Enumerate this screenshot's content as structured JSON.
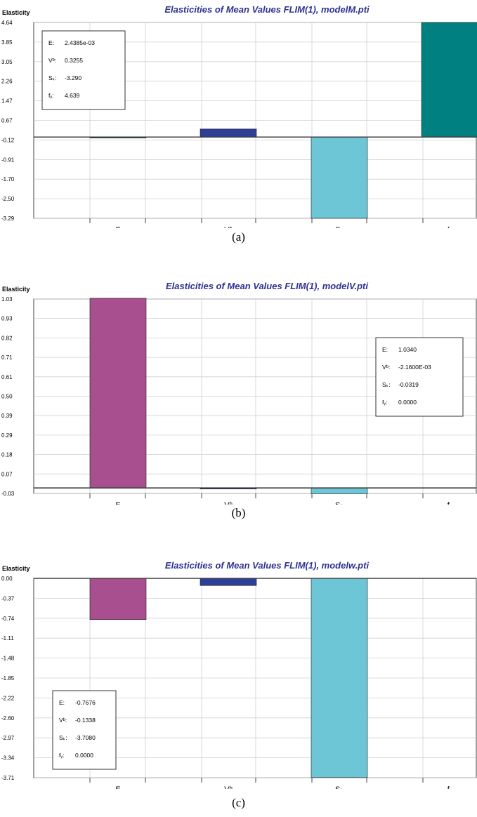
{
  "chart_data": [
    {
      "type": "bar",
      "title": "Elasticities of Mean Values FLIM(1), modelM.pti",
      "ylabel": "Elasticity",
      "categories": [
        "E",
        "Vᵇ",
        "Sₖ",
        "fᵧ"
      ],
      "values": [
        0.0024385,
        0.3255,
        -3.29,
        4.639
      ],
      "ylim": [
        -3.29,
        4.64
      ],
      "yticks": [
        "4.64",
        "3.85",
        "3.05",
        "2.26",
        "1.47",
        "0.67",
        "-0.12",
        "-0.91",
        "-1.70",
        "-2.50",
        "-3.29"
      ],
      "legend": [
        {
          "label": "E:",
          "value": "2.4385e-03"
        },
        {
          "label": "Vᵇ:",
          "value": "0.3255"
        },
        {
          "label": "Sₖ:",
          "value": "-3.290"
        },
        {
          "label": "fᵧ:",
          "value": "4.639"
        }
      ],
      "legend_position": "top-left",
      "caption": "(a)"
    },
    {
      "type": "bar",
      "title": "Elasticities of Mean Values FLIM(1), modelV.pti",
      "ylabel": "Elasticity",
      "categories": [
        "E",
        "Vᵇ",
        "Sₖ",
        "fᵧ"
      ],
      "values": [
        1.034,
        -0.00216,
        -0.0319,
        0.0
      ],
      "ylim": [
        -0.03,
        1.03
      ],
      "yticks": [
        "1.03",
        "0.93",
        "0.82",
        "0.71",
        "0.61",
        "0.50",
        "0.39",
        "0.29",
        "0.18",
        "0.07",
        "-0.03"
      ],
      "legend": [
        {
          "label": "E:",
          "value": "1.0340"
        },
        {
          "label": "Vᵇ:",
          "value": "-2.1600E-03"
        },
        {
          "label": "Sₖ:",
          "value": "-0.0319"
        },
        {
          "label": "fᵧ:",
          "value": "0.0000"
        }
      ],
      "legend_position": "right",
      "caption": "(b)"
    },
    {
      "type": "bar",
      "title": "Elasticities of Mean Values FLIM(1), modelw.pti",
      "ylabel": "Elasticity",
      "categories": [
        "E",
        "Vᵇ",
        "Sₖ",
        "fᵧ"
      ],
      "values": [
        -0.7676,
        -0.1338,
        -3.708,
        0.0
      ],
      "ylim": [
        -3.71,
        0.0
      ],
      "yticks": [
        "0.00",
        "-0.37",
        "-0.74",
        "-1.11",
        "-1.48",
        "-1.85",
        "-2.22",
        "-2.60",
        "-2.97",
        "-3.34",
        "-3.71"
      ],
      "legend": [
        {
          "label": "E:",
          "value": "-0.7676"
        },
        {
          "label": "Vᵇ:",
          "value": "-0.1338"
        },
        {
          "label": "Sₖ:",
          "value": "-3.7080"
        },
        {
          "label": "fᵧ:",
          "value": "0.0000"
        }
      ],
      "legend_position": "bottom-left",
      "caption": "(c)"
    }
  ],
  "colors": {
    "title": "#2e3192",
    "grid": "#d0d0d0",
    "axis": "#404040",
    "bars_a": [
      "#008080",
      "#2e3f99",
      "#6cc6d6",
      "#008080"
    ],
    "bars_bc": [
      "#a8508f",
      "#2e3f99",
      "#6cc6d6",
      "#008080"
    ]
  }
}
